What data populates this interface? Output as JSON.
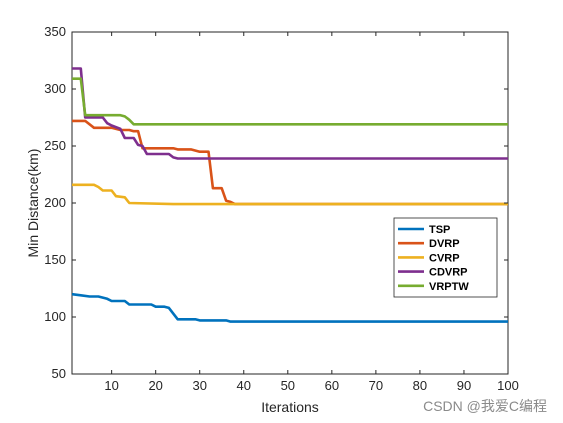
{
  "chart_data": {
    "type": "line",
    "title": "",
    "xlabel": "Iterations",
    "ylabel": "Min Distance(km)",
    "xlim": [
      1,
      100
    ],
    "ylim": [
      50,
      350
    ],
    "xticks": [
      10,
      20,
      30,
      40,
      50,
      60,
      70,
      80,
      90,
      100
    ],
    "yticks": [
      50,
      100,
      150,
      200,
      250,
      300,
      350
    ],
    "legend": {
      "placement": "right-middle"
    },
    "grid": false,
    "series": [
      {
        "name": "TSP",
        "color": "#0072BD",
        "points": [
          [
            1,
            120
          ],
          [
            3,
            119
          ],
          [
            5,
            118
          ],
          [
            7,
            118
          ],
          [
            8,
            117
          ],
          [
            9,
            116
          ],
          [
            10,
            114
          ],
          [
            13,
            114
          ],
          [
            14,
            111
          ],
          [
            19,
            111
          ],
          [
            20,
            109
          ],
          [
            22,
            109
          ],
          [
            23,
            108
          ],
          [
            25,
            98
          ],
          [
            29,
            98
          ],
          [
            30,
            97
          ],
          [
            36,
            97
          ],
          [
            37,
            96
          ],
          [
            100,
            96
          ]
        ]
      },
      {
        "name": "DVRP",
        "color": "#D95319",
        "points": [
          [
            1,
            272
          ],
          [
            4,
            272
          ],
          [
            6,
            266
          ],
          [
            10,
            266
          ],
          [
            11,
            265
          ],
          [
            12,
            264
          ],
          [
            14,
            264
          ],
          [
            15,
            263
          ],
          [
            16,
            263
          ],
          [
            17,
            248
          ],
          [
            24,
            248
          ],
          [
            25,
            247
          ],
          [
            28,
            247
          ],
          [
            30,
            245
          ],
          [
            32,
            245
          ],
          [
            33,
            213
          ],
          [
            35,
            213
          ],
          [
            36,
            202
          ],
          [
            37,
            201
          ],
          [
            38,
            199
          ],
          [
            100,
            199
          ]
        ]
      },
      {
        "name": "CVRP",
        "color": "#EDB120",
        "points": [
          [
            1,
            216
          ],
          [
            6,
            216
          ],
          [
            7,
            214
          ],
          [
            8,
            211
          ],
          [
            10,
            211
          ],
          [
            11,
            206
          ],
          [
            13,
            205
          ],
          [
            14,
            200
          ],
          [
            24,
            199
          ],
          [
            100,
            199
          ]
        ]
      },
      {
        "name": "CDVRP",
        "color": "#7E2F8E",
        "points": [
          [
            1,
            318
          ],
          [
            3,
            318
          ],
          [
            4,
            275
          ],
          [
            8,
            275
          ],
          [
            9,
            270
          ],
          [
            10,
            268
          ],
          [
            12,
            265
          ],
          [
            13,
            257
          ],
          [
            15,
            257
          ],
          [
            16,
            251
          ],
          [
            17,
            250
          ],
          [
            18,
            243
          ],
          [
            23,
            243
          ],
          [
            24,
            240
          ],
          [
            25,
            239
          ],
          [
            100,
            239
          ]
        ]
      },
      {
        "name": "VRPTW",
        "color": "#77AC30",
        "points": [
          [
            1,
            309
          ],
          [
            3,
            309
          ],
          [
            4,
            277
          ],
          [
            12,
            277
          ],
          [
            13,
            276
          ],
          [
            14,
            273
          ],
          [
            15,
            269
          ],
          [
            100,
            269
          ]
        ]
      }
    ]
  },
  "watermark": "CSDN @我爱C编程"
}
